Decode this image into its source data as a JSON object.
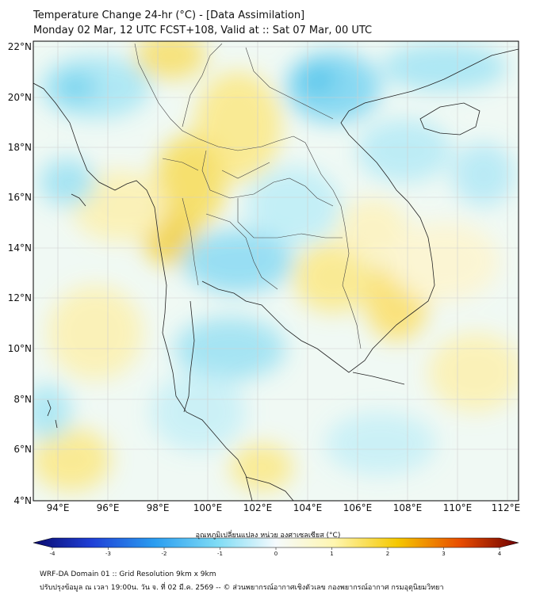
{
  "title_line1": "Temperature Change 24-hr (°C) - [Data Assimilation]",
  "title_line2": "Monday 02 Mar, 12 UTC FCST+108, Valid at :: Sat 07 Mar, 00 UTC",
  "lat_labels": [
    "22°N",
    "20°N",
    "18°N",
    "16°N",
    "14°N",
    "12°N",
    "10°N",
    "8°N",
    "6°N",
    "4°N"
  ],
  "lon_labels": [
    "94°E",
    "96°E",
    "98°E",
    "100°E",
    "102°E",
    "104°E",
    "106°E",
    "108°E",
    "110°E",
    "112°E"
  ],
  "colorbar": {
    "title": "อุณหภูมิเปลี่ยนแปลง หน่วย องศาเซลเซียส (°C)",
    "min": -4,
    "max": 4,
    "tick_labels": [
      "-4",
      "-3",
      "-2",
      "-1",
      "0",
      "1",
      "2",
      "3",
      "4"
    ],
    "colors": [
      "#0a0a6e",
      "#1f3fd6",
      "#2a9df0",
      "#7fdcf5",
      "#f5fafd",
      "#fff6b0",
      "#f5c800",
      "#e84c00",
      "#6e0000"
    ]
  },
  "footer_line1": "WRF-DA Domain 01 :: Grid Resolution 9km x 9km",
  "footer_line2": "ปรับปรุงข้อมูล ณ เวลา 19:00น. วัน จ. ที่ 02 มี.ค. 2569 -- © ส่วนพยากรณ์อากาศเชิงตัวเลข กองพยากรณ์อากาศ กรมอุตุนิยมวิทยา"
}
